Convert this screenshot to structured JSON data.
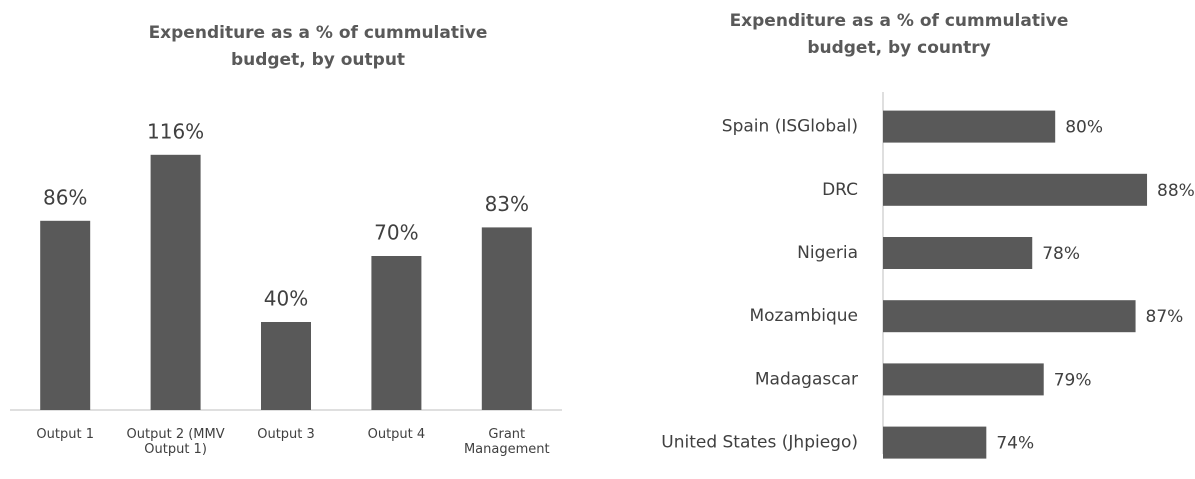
{
  "chart_data": [
    {
      "type": "bar",
      "orientation": "vertical",
      "title": "Expenditure as a % of cummulative budget, by output",
      "categories": [
        "Output 1",
        "Output 2 (MMV Output 1)",
        "Output 3",
        "Output 4",
        "Grant Management"
      ],
      "values": [
        86,
        116,
        40,
        70,
        83
      ],
      "value_labels": [
        "86%",
        "116%",
        "40%",
        "70%",
        "83%"
      ],
      "color": "#595959",
      "ylim": [
        0,
        120
      ]
    },
    {
      "type": "bar",
      "orientation": "horizontal",
      "title": "Expenditure as a % of cummulative budget, by country",
      "categories": [
        "Spain (ISGlobal)",
        "DRC",
        "Nigeria",
        "Mozambique",
        "Madagascar",
        "United States (Jhpiego)"
      ],
      "values": [
        80,
        88,
        78,
        87,
        79,
        74
      ],
      "value_labels": [
        "80%",
        "88%",
        "78%",
        "87%",
        "79%",
        "74%"
      ],
      "color": "#595959",
      "xlim": [
        65,
        90
      ]
    }
  ]
}
